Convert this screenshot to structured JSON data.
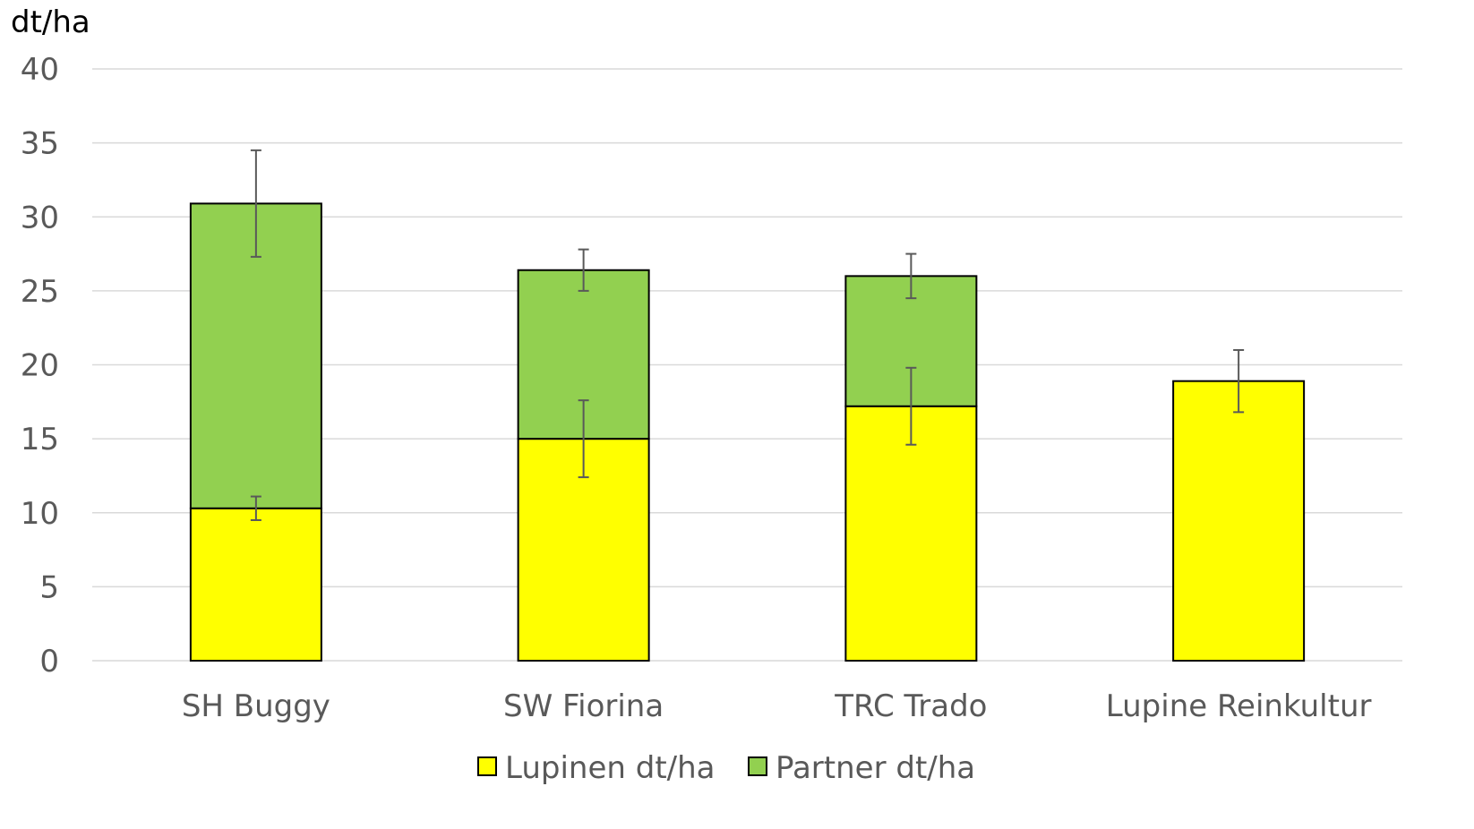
{
  "chart_data": {
    "type": "bar",
    "stacked": true,
    "unit_label": "dt/ha",
    "categories": [
      "SH Buggy",
      "SW Fiorina",
      "TRC Trado",
      "Lupine Reinkultur"
    ],
    "series": [
      {
        "name": "Lupinen dt/ha",
        "color": "#FFFF00",
        "values": [
          10.3,
          15.0,
          17.2,
          18.9
        ],
        "error": [
          0.8,
          2.6,
          2.6,
          2.1
        ]
      },
      {
        "name": "Partner dt/ha",
        "color": "#92D050",
        "values": [
          20.6,
          11.4,
          8.8,
          0
        ],
        "error": [
          3.6,
          1.4,
          1.5,
          0
        ]
      }
    ],
    "yticks": [
      "0",
      "5",
      "10",
      "15",
      "20",
      "25",
      "30",
      "35",
      "40"
    ],
    "ylim": [
      0,
      40
    ],
    "grid": true,
    "legend_position": "bottom"
  }
}
